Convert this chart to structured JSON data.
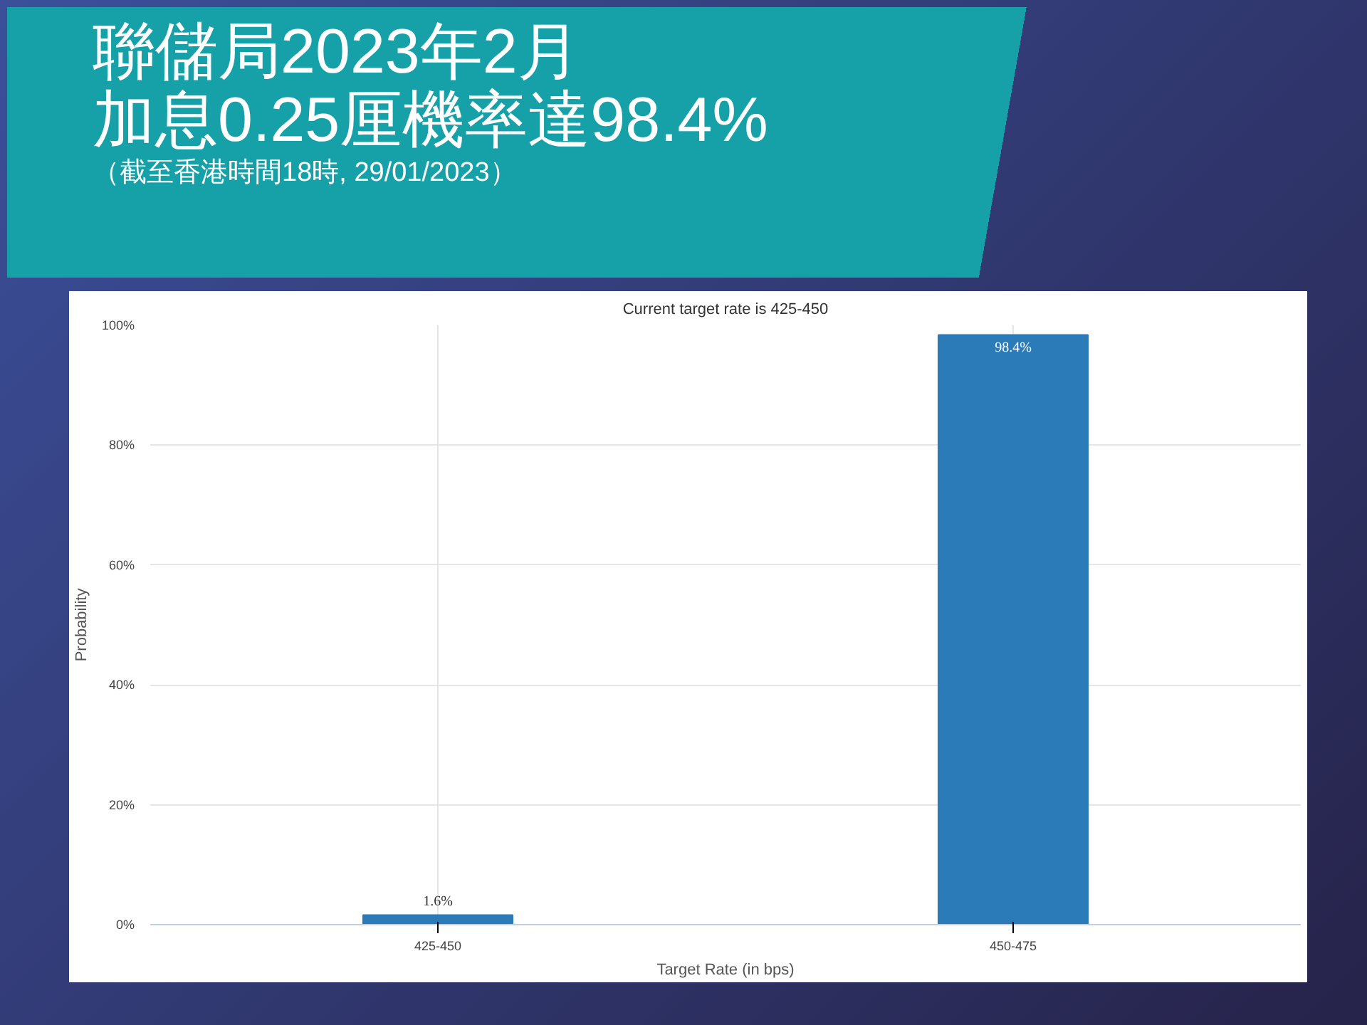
{
  "chart_data": {
    "type": "bar",
    "title": "聯儲局2023年2月",
    "subtitle": "加息0.25厘機率達98.4%",
    "annotations": [
      "（截至香港時間18時, 29/01/2023）",
      "Current target rate is 425-450"
    ],
    "xlabel": "Target Rate (in bps)",
    "ylabel": "Probability",
    "categories": [
      "425-450",
      "450-475"
    ],
    "values": [
      1.6,
      98.4
    ],
    "color": "#2b7bb9",
    "value_labels": [
      "1.6%",
      "98.4%"
    ],
    "ylim": [
      0,
      100
    ],
    "yticks": [
      {
        "value": 0,
        "label": "0%"
      },
      {
        "value": 20,
        "label": "20%"
      },
      {
        "value": 40,
        "label": "40%"
      },
      {
        "value": 60,
        "label": "60%"
      },
      {
        "value": 80,
        "label": "80%"
      },
      {
        "value": 100,
        "label": "100%"
      }
    ],
    "grid": true,
    "legend": false
  }
}
